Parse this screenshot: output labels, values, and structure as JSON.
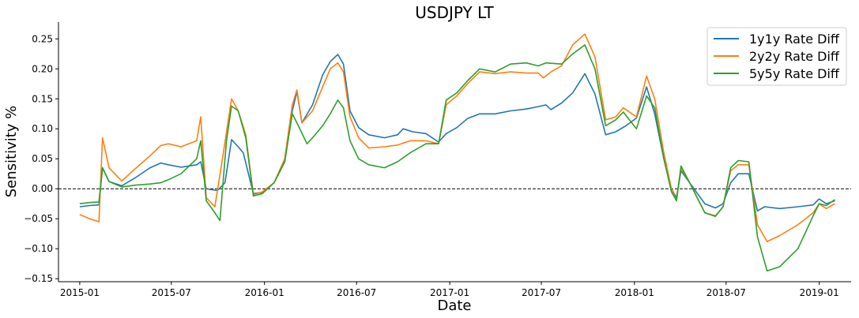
{
  "chart_data": {
    "type": "line",
    "title": "USDJPY LT",
    "xlabel": "Date",
    "ylabel": "Sensitivity %",
    "xlim": [
      "2014-11-20",
      "2019-03-05"
    ],
    "ylim": [
      -0.155,
      0.278
    ],
    "x_ticks": [
      "2015-01",
      "2015-07",
      "2016-01",
      "2016-07",
      "2017-01",
      "2017-07",
      "2018-01",
      "2018-07",
      "2019-01"
    ],
    "y_ticks": [
      -0.15,
      -0.1,
      -0.05,
      0.0,
      0.05,
      0.1,
      0.15,
      0.2,
      0.25
    ],
    "y_tick_labels": [
      "−0.15",
      "−0.10",
      "−0.05",
      "0.00",
      "0.05",
      "0.10",
      "0.15",
      "0.20",
      "0.25"
    ],
    "hline": 0.0,
    "grid": false,
    "legend_position": "top-right",
    "series": [
      {
        "name": "1y1y Rate Diff",
        "color": "#1f77b4",
        "points": [
          [
            "2015-01-01",
            -0.03
          ],
          [
            "2015-01-20",
            -0.028
          ],
          [
            "2015-02-08",
            -0.027
          ],
          [
            "2015-02-15",
            0.035
          ],
          [
            "2015-02-28",
            0.012
          ],
          [
            "2015-03-25",
            0.005
          ],
          [
            "2015-04-20",
            0.018
          ],
          [
            "2015-05-20",
            0.035
          ],
          [
            "2015-06-10",
            0.043
          ],
          [
            "2015-06-25",
            0.04
          ],
          [
            "2015-07-20",
            0.036
          ],
          [
            "2015-08-20",
            0.04
          ],
          [
            "2015-08-28",
            0.045
          ],
          [
            "2015-09-08",
            0.0
          ],
          [
            "2015-09-30",
            -0.003
          ],
          [
            "2015-10-15",
            0.01
          ],
          [
            "2015-10-28",
            0.082
          ],
          [
            "2015-11-10",
            0.07
          ],
          [
            "2015-11-20",
            0.06
          ],
          [
            "2015-12-10",
            -0.008
          ],
          [
            "2015-12-28",
            -0.006
          ],
          [
            "2016-01-20",
            0.01
          ],
          [
            "2016-02-10",
            0.045
          ],
          [
            "2016-02-25",
            0.13
          ],
          [
            "2016-03-05",
            0.162
          ],
          [
            "2016-03-15",
            0.11
          ],
          [
            "2016-04-05",
            0.14
          ],
          [
            "2016-04-25",
            0.19
          ],
          [
            "2016-05-10",
            0.212
          ],
          [
            "2016-05-25",
            0.224
          ],
          [
            "2016-06-05",
            0.208
          ],
          [
            "2016-06-18",
            0.13
          ],
          [
            "2016-07-05",
            0.102
          ],
          [
            "2016-07-25",
            0.09
          ],
          [
            "2016-08-25",
            0.085
          ],
          [
            "2016-09-20",
            0.09
          ],
          [
            "2016-10-01",
            0.1
          ],
          [
            "2016-10-20",
            0.095
          ],
          [
            "2016-11-15",
            0.092
          ],
          [
            "2016-12-10",
            0.078
          ],
          [
            "2016-12-25",
            0.092
          ],
          [
            "2017-01-15",
            0.102
          ],
          [
            "2017-02-05",
            0.117
          ],
          [
            "2017-03-01",
            0.125
          ],
          [
            "2017-04-01",
            0.125
          ],
          [
            "2017-05-01",
            0.13
          ],
          [
            "2017-06-01",
            0.133
          ],
          [
            "2017-06-25",
            0.137
          ],
          [
            "2017-07-10",
            0.14
          ],
          [
            "2017-07-20",
            0.132
          ],
          [
            "2017-08-10",
            0.143
          ],
          [
            "2017-09-01",
            0.16
          ],
          [
            "2017-09-25",
            0.192
          ],
          [
            "2017-10-15",
            0.158
          ],
          [
            "2017-11-05",
            0.09
          ],
          [
            "2017-11-25",
            0.095
          ],
          [
            "2017-12-15",
            0.105
          ],
          [
            "2018-01-05",
            0.118
          ],
          [
            "2018-01-25",
            0.17
          ],
          [
            "2018-02-10",
            0.125
          ],
          [
            "2018-02-28",
            0.05
          ],
          [
            "2018-03-15",
            0.0
          ],
          [
            "2018-03-25",
            -0.015
          ],
          [
            "2018-04-03",
            0.03
          ],
          [
            "2018-04-20",
            0.01
          ],
          [
            "2018-05-20",
            -0.025
          ],
          [
            "2018-06-10",
            -0.032
          ],
          [
            "2018-06-25",
            -0.025
          ],
          [
            "2018-07-10",
            0.01
          ],
          [
            "2018-07-25",
            0.025
          ],
          [
            "2018-08-15",
            0.025
          ],
          [
            "2018-09-01",
            -0.037
          ],
          [
            "2018-09-15",
            -0.03
          ],
          [
            "2018-10-15",
            -0.033
          ],
          [
            "2018-11-20",
            -0.03
          ],
          [
            "2018-12-20",
            -0.027
          ],
          [
            "2019-01-01",
            -0.017
          ],
          [
            "2019-01-15",
            -0.025
          ],
          [
            "2019-02-01",
            -0.02
          ]
        ]
      },
      {
        "name": "2y2y Rate Diff",
        "color": "#ff7f0e",
        "points": [
          [
            "2015-01-01",
            -0.043
          ],
          [
            "2015-01-20",
            -0.05
          ],
          [
            "2015-02-08",
            -0.055
          ],
          [
            "2015-02-15",
            0.085
          ],
          [
            "2015-02-28",
            0.035
          ],
          [
            "2015-03-25",
            0.013
          ],
          [
            "2015-04-20",
            0.033
          ],
          [
            "2015-05-20",
            0.055
          ],
          [
            "2015-06-10",
            0.072
          ],
          [
            "2015-06-25",
            0.075
          ],
          [
            "2015-07-20",
            0.07
          ],
          [
            "2015-08-20",
            0.08
          ],
          [
            "2015-08-28",
            0.12
          ],
          [
            "2015-09-08",
            -0.015
          ],
          [
            "2015-09-25",
            -0.03
          ],
          [
            "2015-10-10",
            0.05
          ],
          [
            "2015-10-28",
            0.15
          ],
          [
            "2015-11-10",
            0.13
          ],
          [
            "2015-11-25",
            0.09
          ],
          [
            "2015-12-10",
            -0.01
          ],
          [
            "2015-12-28",
            -0.005
          ],
          [
            "2016-01-20",
            0.01
          ],
          [
            "2016-02-10",
            0.05
          ],
          [
            "2016-02-25",
            0.14
          ],
          [
            "2016-03-05",
            0.165
          ],
          [
            "2016-03-15",
            0.11
          ],
          [
            "2016-04-05",
            0.13
          ],
          [
            "2016-04-25",
            0.17
          ],
          [
            "2016-05-10",
            0.2
          ],
          [
            "2016-05-25",
            0.21
          ],
          [
            "2016-06-05",
            0.195
          ],
          [
            "2016-06-18",
            0.12
          ],
          [
            "2016-07-05",
            0.085
          ],
          [
            "2016-07-25",
            0.068
          ],
          [
            "2016-08-25",
            0.07
          ],
          [
            "2016-09-20",
            0.073
          ],
          [
            "2016-10-15",
            0.08
          ],
          [
            "2016-11-15",
            0.08
          ],
          [
            "2016-12-10",
            0.075
          ],
          [
            "2016-12-25",
            0.14
          ],
          [
            "2017-01-15",
            0.155
          ],
          [
            "2017-02-05",
            0.175
          ],
          [
            "2017-03-01",
            0.195
          ],
          [
            "2017-04-01",
            0.192
          ],
          [
            "2017-05-01",
            0.195
          ],
          [
            "2017-06-01",
            0.193
          ],
          [
            "2017-06-25",
            0.193
          ],
          [
            "2017-07-05",
            0.185
          ],
          [
            "2017-07-20",
            0.195
          ],
          [
            "2017-08-10",
            0.205
          ],
          [
            "2017-09-01",
            0.24
          ],
          [
            "2017-09-25",
            0.258
          ],
          [
            "2017-10-15",
            0.22
          ],
          [
            "2017-11-05",
            0.115
          ],
          [
            "2017-11-25",
            0.12
          ],
          [
            "2017-12-10",
            0.135
          ],
          [
            "2018-01-05",
            0.12
          ],
          [
            "2018-01-25",
            0.188
          ],
          [
            "2018-02-10",
            0.15
          ],
          [
            "2018-02-28",
            0.06
          ],
          [
            "2018-03-15",
            0.0
          ],
          [
            "2018-03-25",
            -0.02
          ],
          [
            "2018-04-03",
            0.035
          ],
          [
            "2018-04-20",
            0.01
          ],
          [
            "2018-05-20",
            -0.04
          ],
          [
            "2018-06-10",
            -0.045
          ],
          [
            "2018-06-25",
            -0.03
          ],
          [
            "2018-07-10",
            0.03
          ],
          [
            "2018-07-25",
            0.04
          ],
          [
            "2018-08-15",
            0.04
          ],
          [
            "2018-09-01",
            -0.06
          ],
          [
            "2018-09-20",
            -0.088
          ],
          [
            "2018-10-15",
            -0.078
          ],
          [
            "2018-11-20",
            -0.06
          ],
          [
            "2018-12-20",
            -0.04
          ],
          [
            "2019-01-01",
            -0.025
          ],
          [
            "2019-01-15",
            -0.033
          ],
          [
            "2019-02-01",
            -0.025
          ]
        ]
      },
      {
        "name": "5y5y Rate Diff",
        "color": "#2ca02c",
        "points": [
          [
            "2015-01-01",
            -0.025
          ],
          [
            "2015-01-20",
            -0.023
          ],
          [
            "2015-02-08",
            -0.022
          ],
          [
            "2015-02-15",
            0.035
          ],
          [
            "2015-02-28",
            0.012
          ],
          [
            "2015-03-25",
            0.003
          ],
          [
            "2015-04-20",
            0.006
          ],
          [
            "2015-05-20",
            0.008
          ],
          [
            "2015-06-10",
            0.01
          ],
          [
            "2015-06-25",
            0.015
          ],
          [
            "2015-07-20",
            0.025
          ],
          [
            "2015-08-20",
            0.05
          ],
          [
            "2015-08-28",
            0.08
          ],
          [
            "2015-09-08",
            -0.02
          ],
          [
            "2015-09-25",
            -0.04
          ],
          [
            "2015-10-05",
            -0.053
          ],
          [
            "2015-10-18",
            0.08
          ],
          [
            "2015-10-28",
            0.138
          ],
          [
            "2015-11-10",
            0.13
          ],
          [
            "2015-11-25",
            0.085
          ],
          [
            "2015-12-10",
            -0.012
          ],
          [
            "2015-12-28",
            -0.008
          ],
          [
            "2016-01-20",
            0.01
          ],
          [
            "2016-02-10",
            0.045
          ],
          [
            "2016-02-25",
            0.125
          ],
          [
            "2016-03-05",
            0.11
          ],
          [
            "2016-03-25",
            0.075
          ],
          [
            "2016-04-05",
            0.085
          ],
          [
            "2016-04-25",
            0.105
          ],
          [
            "2016-05-10",
            0.125
          ],
          [
            "2016-05-25",
            0.148
          ],
          [
            "2016-06-05",
            0.135
          ],
          [
            "2016-06-18",
            0.08
          ],
          [
            "2016-07-05",
            0.05
          ],
          [
            "2016-07-25",
            0.04
          ],
          [
            "2016-08-25",
            0.035
          ],
          [
            "2016-09-20",
            0.045
          ],
          [
            "2016-10-15",
            0.06
          ],
          [
            "2016-11-15",
            0.075
          ],
          [
            "2016-12-10",
            0.075
          ],
          [
            "2016-12-25",
            0.148
          ],
          [
            "2017-01-15",
            0.16
          ],
          [
            "2017-02-05",
            0.18
          ],
          [
            "2017-03-01",
            0.2
          ],
          [
            "2017-04-01",
            0.195
          ],
          [
            "2017-05-01",
            0.208
          ],
          [
            "2017-06-01",
            0.21
          ],
          [
            "2017-06-25",
            0.205
          ],
          [
            "2017-07-10",
            0.21
          ],
          [
            "2017-08-10",
            0.208
          ],
          [
            "2017-09-01",
            0.225
          ],
          [
            "2017-09-25",
            0.24
          ],
          [
            "2017-10-15",
            0.2
          ],
          [
            "2017-11-05",
            0.105
          ],
          [
            "2017-11-25",
            0.115
          ],
          [
            "2017-12-10",
            0.128
          ],
          [
            "2018-01-05",
            0.1
          ],
          [
            "2018-01-25",
            0.155
          ],
          [
            "2018-02-10",
            0.135
          ],
          [
            "2018-02-28",
            0.05
          ],
          [
            "2018-03-15",
            -0.005
          ],
          [
            "2018-03-25",
            -0.02
          ],
          [
            "2018-04-03",
            0.038
          ],
          [
            "2018-04-20",
            0.01
          ],
          [
            "2018-05-20",
            -0.04
          ],
          [
            "2018-06-10",
            -0.046
          ],
          [
            "2018-06-25",
            -0.03
          ],
          [
            "2018-07-10",
            0.035
          ],
          [
            "2018-07-25",
            0.047
          ],
          [
            "2018-08-15",
            0.045
          ],
          [
            "2018-09-01",
            -0.08
          ],
          [
            "2018-09-20",
            -0.137
          ],
          [
            "2018-10-15",
            -0.13
          ],
          [
            "2018-11-20",
            -0.1
          ],
          [
            "2018-12-20",
            -0.045
          ],
          [
            "2019-01-01",
            -0.025
          ],
          [
            "2019-01-15",
            -0.028
          ],
          [
            "2019-02-01",
            -0.018
          ]
        ]
      }
    ]
  }
}
